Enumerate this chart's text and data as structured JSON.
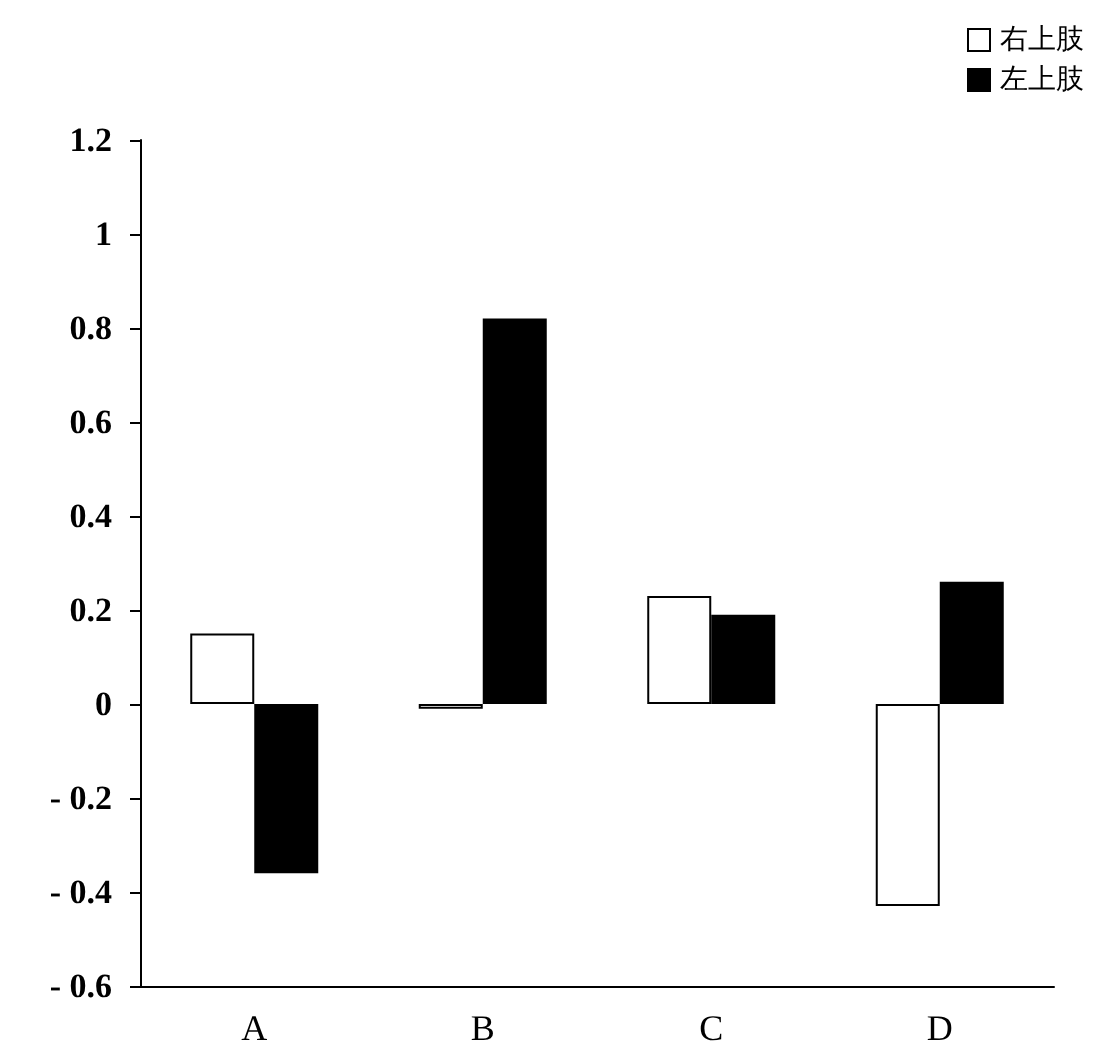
{
  "chart_data": {
    "type": "bar",
    "categories": [
      "A",
      "B",
      "C",
      "D"
    ],
    "series": [
      {
        "name": "右上肢",
        "color": "#ffffff",
        "values": [
          0.15,
          -0.01,
          0.23,
          -0.43
        ]
      },
      {
        "name": "左上肢",
        "color": "#000000",
        "values": [
          -0.36,
          0.82,
          0.19,
          0.26
        ]
      }
    ],
    "ylim": [
      -0.6,
      1.2
    ],
    "yticks": [
      {
        "value": -0.6,
        "label": "- 0.6"
      },
      {
        "value": -0.4,
        "label": "- 0.4"
      },
      {
        "value": -0.2,
        "label": "- 0.2"
      },
      0,
      0.2,
      0.4,
      0.6,
      0.8,
      1,
      1.2
    ],
    "grid": false,
    "legend": "top right"
  }
}
